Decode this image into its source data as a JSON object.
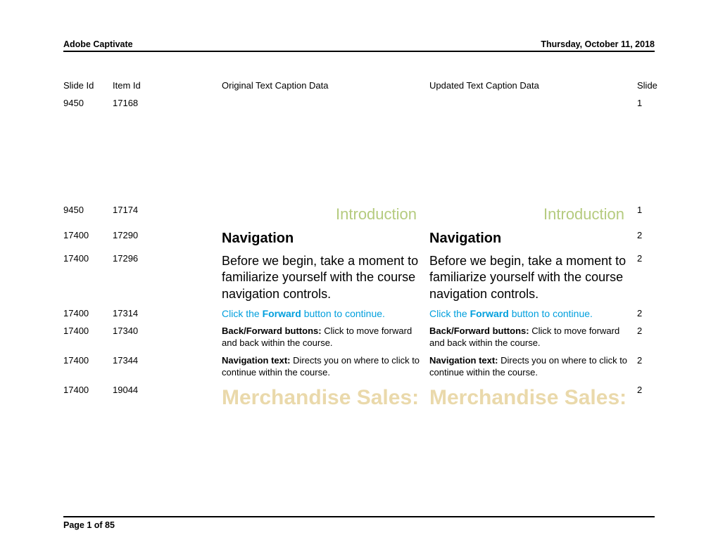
{
  "header": {
    "left": "Adobe Captivate",
    "right": "Thursday, October 11, 2018"
  },
  "columns": {
    "slide_id": "Slide Id",
    "item_id": "Item Id",
    "original": "Original Text Caption Data",
    "updated": "Updated Text Caption Data",
    "slide": "Slide"
  },
  "rows": [
    {
      "slide_id": "9450",
      "item_id": "17168",
      "orig": "",
      "upd": "",
      "slide": "1",
      "style": "plain"
    },
    {
      "slide_id": "9450",
      "item_id": "17174",
      "orig": "Introduction",
      "upd": "Introduction",
      "slide": "1",
      "style": "intro"
    },
    {
      "slide_id": "17400",
      "item_id": "17290",
      "orig": "Navigation",
      "upd": "Navigation",
      "slide": "2",
      "style": "navhead"
    },
    {
      "slide_id": "17400",
      "item_id": "17296",
      "orig": "Before we begin, take a moment to familiarize yourself with the course navigation controls.",
      "upd": "Before we begin, take a moment to familiarize yourself with the course navigation controls.",
      "slide": "2",
      "style": "body"
    },
    {
      "slide_id": "17400",
      "item_id": "17314",
      "orig_pre": "Click the ",
      "orig_bold": "Forward",
      "orig_post": " button to continue.",
      "upd_pre": "Click the ",
      "upd_bold": "Forward",
      "upd_post": " button to continue.",
      "slide": "2",
      "style": "click"
    },
    {
      "slide_id": "17400",
      "item_id": "17340",
      "orig_bold": "Back/Forward buttons:",
      "orig_rest": " Click to move forward and back within the course.",
      "upd_bold": "Back/Forward buttons:",
      "upd_rest": " Click to move forward and back within the course.",
      "slide": "2",
      "style": "note"
    },
    {
      "slide_id": "17400",
      "item_id": "17344",
      "orig_bold": "Navigation text:",
      "orig_rest": " Directs you on where to click to continue within the course.",
      "upd_bold": "Navigation text:",
      "upd_rest": " Directs you on where to click to continue within the course.",
      "slide": "2",
      "style": "note"
    },
    {
      "slide_id": "17400",
      "item_id": "19044",
      "orig": "Merchandise Sales:",
      "upd": "Merchandise Sales:",
      "slide": "2",
      "style": "merch"
    }
  ],
  "footer": "Page 1 of 85"
}
